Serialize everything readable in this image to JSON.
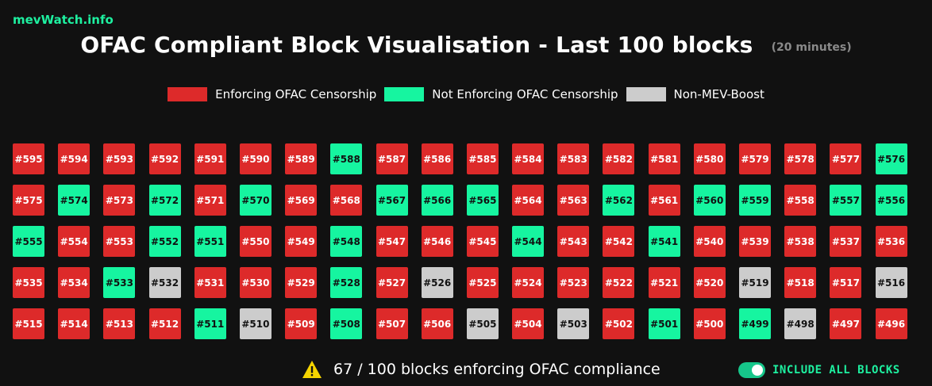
{
  "brand": "mevWatch.info",
  "title": "OFAC Compliant Block Visualisation - Last 100 blocks",
  "subtitle": "(20 minutes)",
  "legend": [
    {
      "label": "Enforcing OFAC Censorship",
      "color": "#dd2a2a",
      "status": "enforcing"
    },
    {
      "label": "Not Enforcing OFAC Censorship",
      "color": "#16f5a0",
      "status": "not-enforcing"
    },
    {
      "label": "Non-MEV-Boost",
      "color": "#cccccc",
      "status": "non-mev"
    }
  ],
  "blocks": [
    {
      "label": "#595",
      "status": "enforcing"
    },
    {
      "label": "#594",
      "status": "enforcing"
    },
    {
      "label": "#593",
      "status": "enforcing"
    },
    {
      "label": "#592",
      "status": "enforcing"
    },
    {
      "label": "#591",
      "status": "enforcing"
    },
    {
      "label": "#590",
      "status": "enforcing"
    },
    {
      "label": "#589",
      "status": "enforcing"
    },
    {
      "label": "#588",
      "status": "not-enforcing"
    },
    {
      "label": "#587",
      "status": "enforcing"
    },
    {
      "label": "#586",
      "status": "enforcing"
    },
    {
      "label": "#585",
      "status": "enforcing"
    },
    {
      "label": "#584",
      "status": "enforcing"
    },
    {
      "label": "#583",
      "status": "enforcing"
    },
    {
      "label": "#582",
      "status": "enforcing"
    },
    {
      "label": "#581",
      "status": "enforcing"
    },
    {
      "label": "#580",
      "status": "enforcing"
    },
    {
      "label": "#579",
      "status": "enforcing"
    },
    {
      "label": "#578",
      "status": "enforcing"
    },
    {
      "label": "#577",
      "status": "enforcing"
    },
    {
      "label": "#576",
      "status": "not-enforcing"
    },
    {
      "label": "#575",
      "status": "enforcing"
    },
    {
      "label": "#574",
      "status": "not-enforcing"
    },
    {
      "label": "#573",
      "status": "enforcing"
    },
    {
      "label": "#572",
      "status": "not-enforcing"
    },
    {
      "label": "#571",
      "status": "enforcing"
    },
    {
      "label": "#570",
      "status": "not-enforcing"
    },
    {
      "label": "#569",
      "status": "enforcing"
    },
    {
      "label": "#568",
      "status": "enforcing"
    },
    {
      "label": "#567",
      "status": "not-enforcing"
    },
    {
      "label": "#566",
      "status": "not-enforcing"
    },
    {
      "label": "#565",
      "status": "not-enforcing"
    },
    {
      "label": "#564",
      "status": "enforcing"
    },
    {
      "label": "#563",
      "status": "enforcing"
    },
    {
      "label": "#562",
      "status": "not-enforcing"
    },
    {
      "label": "#561",
      "status": "enforcing"
    },
    {
      "label": "#560",
      "status": "not-enforcing"
    },
    {
      "label": "#559",
      "status": "not-enforcing"
    },
    {
      "label": "#558",
      "status": "enforcing"
    },
    {
      "label": "#557",
      "status": "not-enforcing"
    },
    {
      "label": "#556",
      "status": "not-enforcing"
    },
    {
      "label": "#555",
      "status": "not-enforcing"
    },
    {
      "label": "#554",
      "status": "enforcing"
    },
    {
      "label": "#553",
      "status": "enforcing"
    },
    {
      "label": "#552",
      "status": "not-enforcing"
    },
    {
      "label": "#551",
      "status": "not-enforcing"
    },
    {
      "label": "#550",
      "status": "enforcing"
    },
    {
      "label": "#549",
      "status": "enforcing"
    },
    {
      "label": "#548",
      "status": "not-enforcing"
    },
    {
      "label": "#547",
      "status": "enforcing"
    },
    {
      "label": "#546",
      "status": "enforcing"
    },
    {
      "label": "#545",
      "status": "enforcing"
    },
    {
      "label": "#544",
      "status": "not-enforcing"
    },
    {
      "label": "#543",
      "status": "enforcing"
    },
    {
      "label": "#542",
      "status": "enforcing"
    },
    {
      "label": "#541",
      "status": "not-enforcing"
    },
    {
      "label": "#540",
      "status": "enforcing"
    },
    {
      "label": "#539",
      "status": "enforcing"
    },
    {
      "label": "#538",
      "status": "enforcing"
    },
    {
      "label": "#537",
      "status": "enforcing"
    },
    {
      "label": "#536",
      "status": "enforcing"
    },
    {
      "label": "#535",
      "status": "enforcing"
    },
    {
      "label": "#534",
      "status": "enforcing"
    },
    {
      "label": "#533",
      "status": "not-enforcing"
    },
    {
      "label": "#532",
      "status": "non-mev"
    },
    {
      "label": "#531",
      "status": "enforcing"
    },
    {
      "label": "#530",
      "status": "enforcing"
    },
    {
      "label": "#529",
      "status": "enforcing"
    },
    {
      "label": "#528",
      "status": "not-enforcing"
    },
    {
      "label": "#527",
      "status": "enforcing"
    },
    {
      "label": "#526",
      "status": "non-mev"
    },
    {
      "label": "#525",
      "status": "enforcing"
    },
    {
      "label": "#524",
      "status": "enforcing"
    },
    {
      "label": "#523",
      "status": "enforcing"
    },
    {
      "label": "#522",
      "status": "enforcing"
    },
    {
      "label": "#521",
      "status": "enforcing"
    },
    {
      "label": "#520",
      "status": "enforcing"
    },
    {
      "label": "#519",
      "status": "non-mev"
    },
    {
      "label": "#518",
      "status": "enforcing"
    },
    {
      "label": "#517",
      "status": "enforcing"
    },
    {
      "label": "#516",
      "status": "non-mev"
    },
    {
      "label": "#515",
      "status": "enforcing"
    },
    {
      "label": "#514",
      "status": "enforcing"
    },
    {
      "label": "#513",
      "status": "enforcing"
    },
    {
      "label": "#512",
      "status": "enforcing"
    },
    {
      "label": "#511",
      "status": "not-enforcing"
    },
    {
      "label": "#510",
      "status": "non-mev"
    },
    {
      "label": "#509",
      "status": "enforcing"
    },
    {
      "label": "#508",
      "status": "not-enforcing"
    },
    {
      "label": "#507",
      "status": "enforcing"
    },
    {
      "label": "#506",
      "status": "enforcing"
    },
    {
      "label": "#505",
      "status": "non-mev"
    },
    {
      "label": "#504",
      "status": "enforcing"
    },
    {
      "label": "#503",
      "status": "non-mev"
    },
    {
      "label": "#502",
      "status": "enforcing"
    },
    {
      "label": "#501",
      "status": "not-enforcing"
    },
    {
      "label": "#500",
      "status": "enforcing"
    },
    {
      "label": "#499",
      "status": "not-enforcing"
    },
    {
      "label": "#498",
      "status": "non-mev"
    },
    {
      "label": "#497",
      "status": "enforcing"
    },
    {
      "label": "#496",
      "status": "enforcing"
    }
  ],
  "summary": {
    "icon": "warning-icon",
    "text": "67 / 100 blocks enforcing OFAC compliance"
  },
  "toggle": {
    "label": "INCLUDE ALL BLOCKS",
    "checked": true
  }
}
